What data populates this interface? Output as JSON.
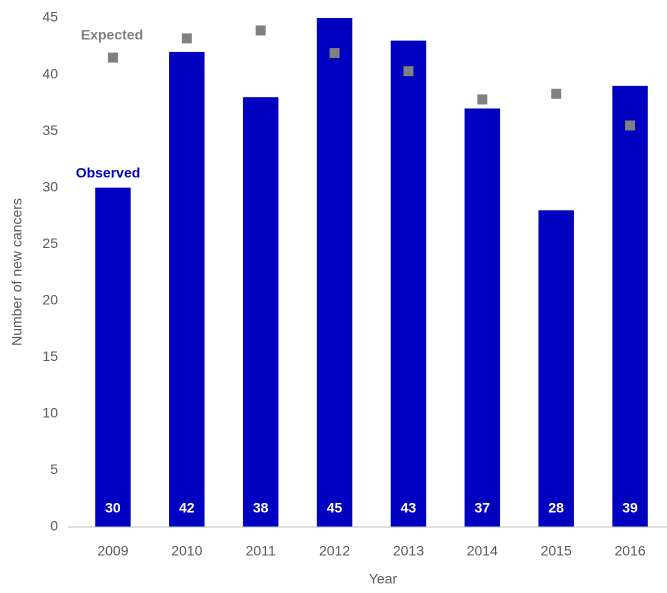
{
  "chart_data": {
    "type": "bar",
    "x_label": "Year",
    "y_label": "Number of new cancers",
    "categories": [
      "2009",
      "2010",
      "2011",
      "2012",
      "2013",
      "2014",
      "2015",
      "2016"
    ],
    "series": [
      {
        "name": "Observed",
        "color": "#0000c0",
        "values": [
          30,
          42,
          38,
          45,
          43,
          37,
          28,
          39
        ]
      },
      {
        "name": "Expected",
        "color": "#808080",
        "values": [
          41.5,
          43.2,
          43.9,
          41.9,
          40.3,
          37.8,
          38.3,
          35.5
        ]
      }
    ],
    "ylim": [
      0,
      45
    ],
    "yticks": [
      0,
      5,
      10,
      15,
      20,
      25,
      30,
      35,
      40,
      45
    ],
    "grid": false
  }
}
